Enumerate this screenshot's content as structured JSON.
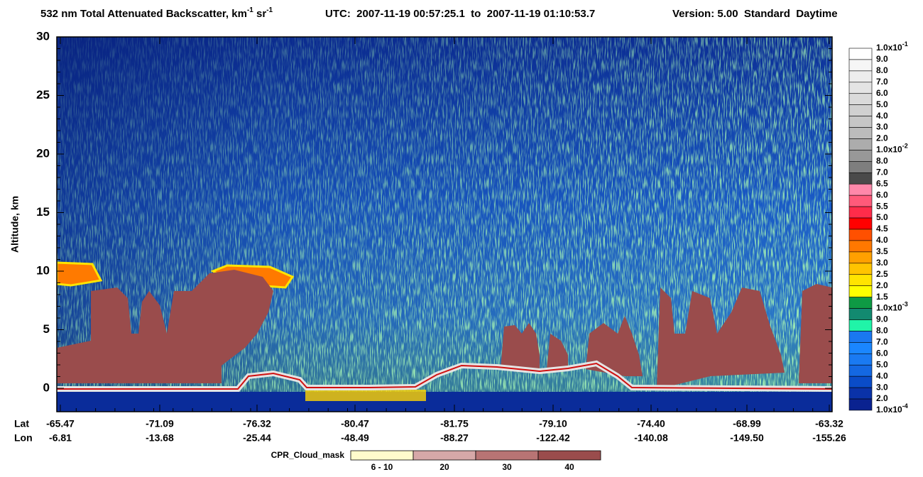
{
  "chart_data": {
    "type": "heatmap",
    "title_parts": [
      "532 nm Total Attenuated Backscatter, km",
      "-1",
      " sr",
      "-1"
    ],
    "time_range": "UTC:  2007-11-19 00:57:25.1  to  2007-11-19 01:10:53.7",
    "version": "Version: 5.00  Standard  Daytime",
    "ylabel": "Altitude, km",
    "ylim": [
      -2,
      30
    ],
    "yticks": [
      0,
      5,
      10,
      15,
      20,
      25,
      30
    ],
    "x_rows": [
      {
        "label": "Lat",
        "values": [
          "-65.47",
          "-71.09",
          "-76.32",
          "-80.47",
          "-81.75",
          "-79.10",
          "-74.40",
          "-68.99",
          "-63.32"
        ]
      },
      {
        "label": "Lon",
        "values": [
          "-6.81",
          "-13.68",
          "-25.44",
          "-48.49",
          "-88.27",
          "-122.42",
          "-140.08",
          "-149.50",
          "-155.26"
        ]
      }
    ],
    "colorbar": {
      "labels": [
        {
          "text": "1.0x10",
          "exp": "-1"
        },
        "9.0",
        "8.0",
        "7.0",
        "6.0",
        "5.0",
        "4.0",
        "3.0",
        "2.0",
        {
          "text": "1.0x10",
          "exp": "-2"
        },
        "8.0",
        "7.0",
        "6.5",
        "6.0",
        "5.5",
        "5.0",
        "4.5",
        "4.0",
        "3.5",
        "3.0",
        "2.5",
        "2.0",
        "1.5",
        {
          "text": "1.0x10",
          "exp": "-3"
        },
        "9.0",
        "8.0",
        "7.0",
        "6.0",
        "5.0",
        "4.0",
        "3.0",
        "2.0",
        {
          "text": "1.0x10",
          "exp": "-4"
        }
      ],
      "colors": [
        "#ffffff",
        "#f6f6f6",
        "#ededed",
        "#e4e4e4",
        "#dadada",
        "#d0d0d0",
        "#c6c6c6",
        "#bcbcbc",
        "#acacac",
        "#989898",
        "#7e7e7e",
        "#4a4a4a",
        "#ff88aa",
        "#ff5a7a",
        "#ff2c4a",
        "#ff0000",
        "#ff5000",
        "#ff7800",
        "#ffa000",
        "#ffc400",
        "#ffe400",
        "#ffff00",
        "#0e9a44",
        "#128a70",
        "#20f4a8",
        "#1a78f0",
        "#1a86ff",
        "#1a7af2",
        "#1468e2",
        "#0a4cc8",
        "#0a32a8",
        "#0a2290"
      ]
    },
    "cloud_mask": {
      "title": "CPR_Cloud_mask",
      "labels": [
        "6 - 10",
        "20",
        "30",
        "40"
      ],
      "colors": [
        "#fffbcc",
        "#d6a8a8",
        "#b87474",
        "#9a4c4c"
      ]
    }
  }
}
